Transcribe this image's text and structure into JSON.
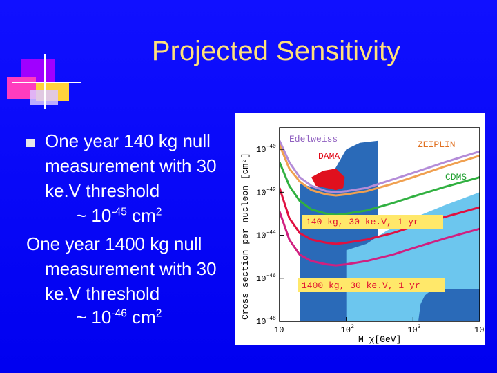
{
  "slide": {
    "title": "Projected Sensitivity",
    "text": {
      "item1_line1": "One year 140 kg null",
      "item1_line2": "measurement with 30",
      "item1_line3": "ke.V threshold",
      "item1_tilde": "~ 10",
      "item1_exp": "-45",
      "item1_unit": " cm",
      "item1_unit_exp": "2",
      "item2_line1": "One year 1400 kg null",
      "item2_line2": "measurement with 30",
      "item2_line3": "ke.V threshold",
      "item2_tilde": "~ 10",
      "item2_exp": "-46",
      "item2_unit": " cm",
      "item2_unit_exp": "2"
    },
    "colors": {
      "background": "#0000ff",
      "title": "#ffe07a",
      "text": "#ffffff"
    }
  },
  "chart_data": {
    "type": "line",
    "x_scale": "log",
    "y_scale": "log",
    "xlim": [
      10,
      10000
    ],
    "ylim_exponents": [
      -48,
      -39
    ],
    "ylabel": "Cross section per nucleon [cm²]",
    "xlabel": "M_χ[GeV]",
    "x_ticks": [
      {
        "base": "10",
        "exp": ""
      },
      {
        "base": "10",
        "exp": "2"
      },
      {
        "base": "10",
        "exp": "3"
      },
      {
        "base": "10",
        "exp": "4"
      }
    ],
    "y_ticks": [
      {
        "base": "10",
        "exp": "-40"
      },
      {
        "base": "10",
        "exp": "-42"
      },
      {
        "base": "10",
        "exp": "-44"
      },
      {
        "base": "10",
        "exp": "-46"
      },
      {
        "base": "10",
        "exp": "-48"
      }
    ],
    "series": [
      {
        "name": "Edelweiss",
        "color": "#b48cd8",
        "x": [
          10,
          14,
          20,
          30,
          50,
          70,
          100,
          200,
          500,
          1000,
          3000,
          10000
        ],
        "log10_y": [
          -39.6,
          -40.6,
          -41.3,
          -41.7,
          -41.95,
          -42.0,
          -41.95,
          -41.8,
          -41.4,
          -41.1,
          -40.6,
          -40.1
        ]
      },
      {
        "name": "ZEIPLIN",
        "color": "#f0a050",
        "x": [
          10,
          14,
          20,
          30,
          50,
          70,
          100,
          200,
          500,
          1000,
          3000,
          10000
        ],
        "log10_y": [
          -39.8,
          -40.9,
          -41.5,
          -41.9,
          -42.1,
          -42.15,
          -42.1,
          -41.95,
          -41.6,
          -41.3,
          -40.8,
          -40.3
        ]
      },
      {
        "name": "CDMS",
        "color": "#30b040",
        "x": [
          10,
          14,
          20,
          30,
          50,
          70,
          100,
          200,
          500,
          1000,
          3000,
          10000
        ],
        "log10_y": [
          -40.6,
          -41.7,
          -42.4,
          -42.8,
          -43.0,
          -43.05,
          -43.0,
          -42.85,
          -42.5,
          -42.2,
          -41.75,
          -41.3
        ]
      },
      {
        "name": "140 kg, 30 ke.V, 1 yr",
        "color": "#e01040",
        "x": [
          10,
          14,
          20,
          30,
          50,
          70,
          100,
          200,
          500,
          1000,
          3000,
          10000
        ],
        "log10_y": [
          -41.8,
          -43.2,
          -43.9,
          -44.2,
          -44.35,
          -44.4,
          -44.35,
          -44.2,
          -43.9,
          -43.6,
          -43.15,
          -42.7
        ]
      },
      {
        "name": "1400 kg, 30 ke.V, 1 yr",
        "color": "#d02080",
        "x": [
          10,
          14,
          20,
          30,
          50,
          70,
          100,
          200,
          500,
          1000,
          3000,
          10000
        ],
        "log10_y": [
          -42.9,
          -44.2,
          -44.9,
          -45.2,
          -45.35,
          -45.4,
          -45.35,
          -45.2,
          -44.9,
          -44.6,
          -44.15,
          -43.7
        ]
      }
    ],
    "regions": [
      {
        "name": "DAMA",
        "color": "#e0101e"
      }
    ],
    "annotations": [
      "Edelweiss",
      "DAMA",
      "ZEIPLIN",
      "CDMS",
      "140 kg, 30 ke.V, 1 yr",
      "1400 kg, 30 ke.V, 1 yr"
    ]
  }
}
